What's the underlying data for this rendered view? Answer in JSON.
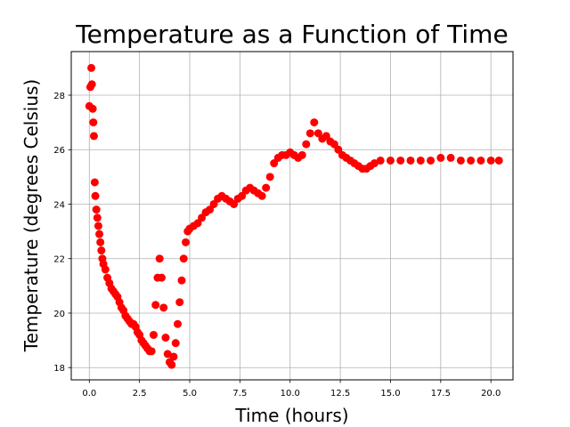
{
  "chart_data": {
    "type": "scatter",
    "title": "Temperature as a Function of Time",
    "xlabel": "Time (hours)",
    "ylabel": "Temperature (degrees Celsius)",
    "xlim": [
      -0.9,
      21.1
    ],
    "ylim": [
      17.55,
      29.6
    ],
    "x_ticks": [
      0.0,
      2.5,
      5.0,
      7.5,
      10.0,
      12.5,
      15.0,
      17.5,
      20.0
    ],
    "x_tick_labels": [
      "0.0",
      "2.5",
      "5.0",
      "7.5",
      "10.0",
      "12.5",
      "15.0",
      "17.5",
      "20.0"
    ],
    "y_ticks": [
      18,
      20,
      22,
      24,
      26,
      28
    ],
    "y_tick_labels": [
      "18",
      "20",
      "22",
      "24",
      "26",
      "28"
    ],
    "grid": true,
    "marker_color": "#ff0000",
    "series": [
      {
        "x": [
          0.0,
          0.05,
          0.1,
          0.13,
          0.17,
          0.2,
          0.23,
          0.27,
          0.3,
          0.35,
          0.4,
          0.45,
          0.5,
          0.55,
          0.6,
          0.65,
          0.7,
          0.8,
          0.9,
          1.0,
          1.1,
          1.2,
          1.3,
          1.4,
          1.5,
          1.6,
          1.7,
          1.8,
          1.9,
          2.0,
          2.1,
          2.2,
          2.3,
          2.4,
          2.5,
          2.6,
          2.7,
          2.8,
          2.9,
          3.0,
          3.1,
          3.2,
          3.3,
          3.4,
          3.5,
          3.6,
          3.7,
          3.8,
          3.9,
          4.0,
          4.1,
          4.2,
          4.3,
          4.4,
          4.5,
          4.6,
          4.7,
          4.8,
          4.9,
          5.0,
          5.2,
          5.4,
          5.6,
          5.8,
          6.0,
          6.2,
          6.4,
          6.6,
          6.8,
          7.0,
          7.2,
          7.4,
          7.6,
          7.8,
          8.0,
          8.2,
          8.4,
          8.6,
          8.8,
          9.0,
          9.2,
          9.4,
          9.6,
          9.8,
          10.0,
          10.2,
          10.4,
          10.6,
          10.8,
          11.0,
          11.2,
          11.4,
          11.6,
          11.8,
          12.0,
          12.2,
          12.4,
          12.6,
          12.8,
          13.0,
          13.2,
          13.4,
          13.6,
          13.8,
          14.0,
          14.2,
          14.5,
          15.0,
          15.5,
          16.0,
          16.5,
          17.0,
          17.5,
          18.0,
          18.5,
          19.0,
          19.5,
          20.0,
          20.4
        ],
        "y": [
          27.6,
          28.3,
          29.0,
          28.4,
          27.5,
          27.0,
          26.5,
          24.8,
          24.3,
          23.8,
          23.5,
          23.2,
          22.9,
          22.6,
          22.3,
          22.0,
          21.8,
          21.6,
          21.3,
          21.1,
          20.9,
          20.8,
          20.7,
          20.6,
          20.4,
          20.2,
          20.1,
          19.9,
          19.8,
          19.7,
          19.6,
          19.6,
          19.5,
          19.3,
          19.2,
          19.0,
          18.9,
          18.8,
          18.7,
          18.6,
          18.6,
          19.2,
          20.3,
          21.3,
          22.0,
          21.3,
          20.2,
          19.1,
          18.5,
          18.2,
          18.1,
          18.4,
          18.9,
          19.6,
          20.4,
          21.2,
          22.0,
          22.6,
          23.0,
          23.1,
          23.2,
          23.3,
          23.5,
          23.7,
          23.8,
          24.0,
          24.2,
          24.3,
          24.2,
          24.1,
          24.0,
          24.2,
          24.3,
          24.5,
          24.6,
          24.5,
          24.4,
          24.3,
          24.6,
          25.0,
          25.5,
          25.7,
          25.8,
          25.8,
          25.9,
          25.8,
          25.7,
          25.8,
          26.2,
          26.6,
          27.0,
          26.6,
          26.4,
          26.5,
          26.3,
          26.2,
          26.0,
          25.8,
          25.7,
          25.6,
          25.5,
          25.4,
          25.3,
          25.3,
          25.4,
          25.5,
          25.6,
          25.6,
          25.6,
          25.6,
          25.6,
          25.6,
          25.7,
          25.7,
          25.6,
          25.6,
          25.6,
          25.6,
          25.6
        ]
      }
    ]
  }
}
